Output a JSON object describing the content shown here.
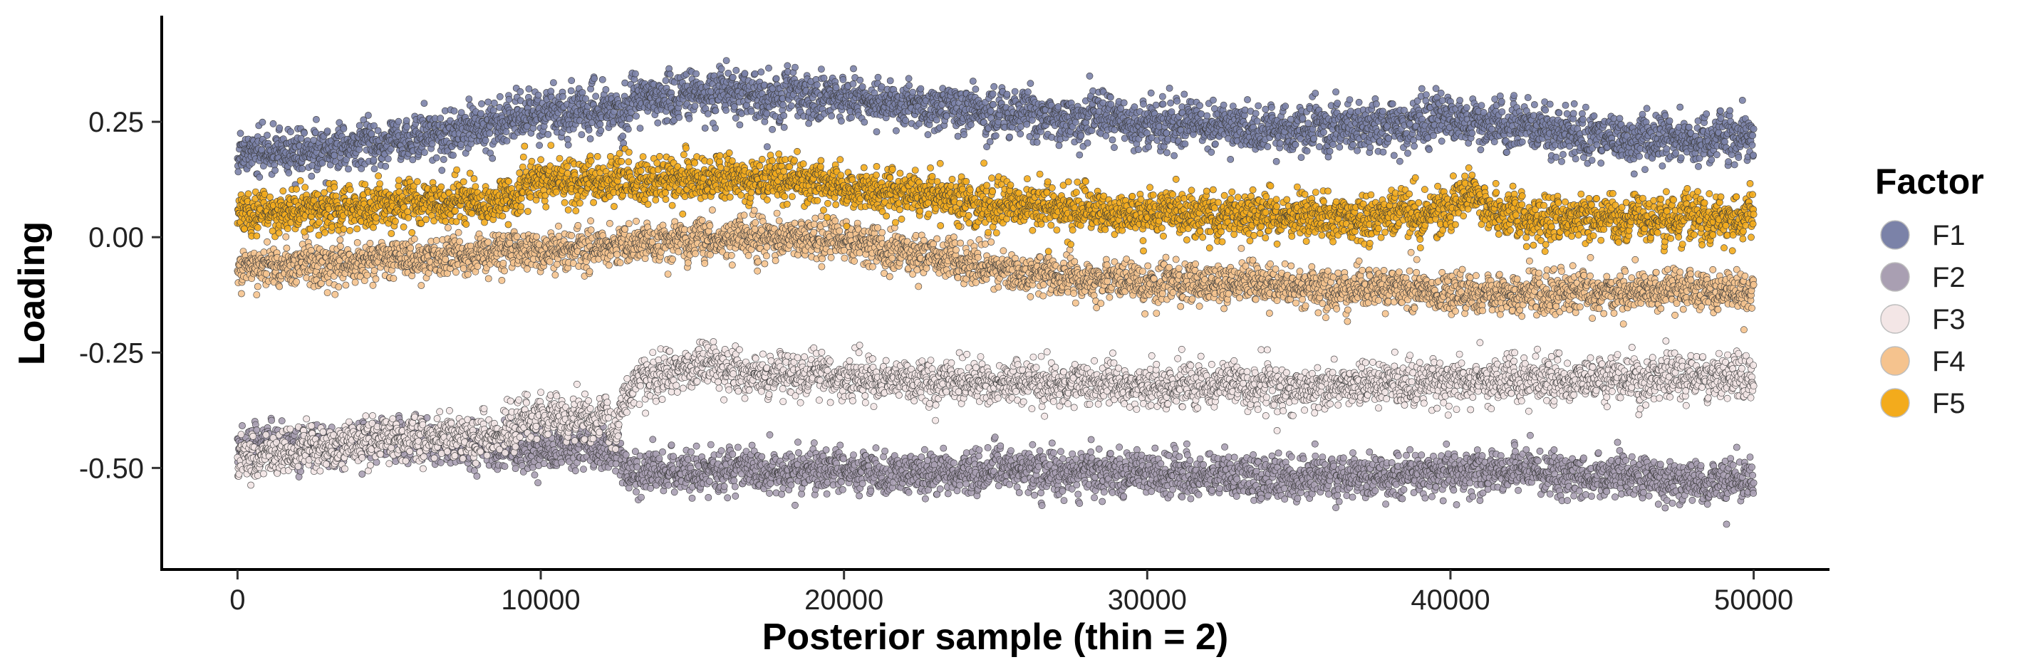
{
  "chart_data": {
    "type": "scatter",
    "xlabel": "Posterior sample (thin = 2)",
    "ylabel": "Loading",
    "xlim": [
      -2500,
      52500
    ],
    "ylim": [
      -0.72,
      0.48
    ],
    "x_ticks": [
      0,
      10000,
      20000,
      30000,
      40000,
      50000
    ],
    "x_tick_labels": [
      "0",
      "10000",
      "20000",
      "30000",
      "40000",
      "50000"
    ],
    "y_ticks": [
      0.25,
      0.0,
      -0.25,
      -0.5
    ],
    "y_tick_labels": [
      "0.25",
      "0.00",
      "-0.25",
      "-0.50"
    ],
    "grid": false,
    "legend": {
      "title": "Factor",
      "position": "right"
    },
    "x_sample_step": 2,
    "series": [
      {
        "name": "F1",
        "color": "#7b82a8",
        "x": [
          0,
          2500,
          5000,
          7500,
          9000,
          10000,
          12500,
          13000,
          15000,
          17500,
          20000,
          22500,
          25000,
          27500,
          30000,
          32500,
          35000,
          37500,
          40000,
          42500,
          45000,
          47500,
          50000
        ],
        "y": [
          0.18,
          0.19,
          0.21,
          0.23,
          0.26,
          0.27,
          0.27,
          0.3,
          0.31,
          0.31,
          0.3,
          0.28,
          0.27,
          0.26,
          0.25,
          0.24,
          0.23,
          0.24,
          0.26,
          0.24,
          0.22,
          0.21,
          0.22
        ],
        "spread": 0.038
      },
      {
        "name": "F2",
        "color": "#a99fb2",
        "x": [
          0,
          2500,
          5000,
          7500,
          10000,
          12500,
          13000,
          15000,
          17500,
          20000,
          22500,
          25000,
          27500,
          30000,
          32500,
          35000,
          37500,
          40000,
          42500,
          45000,
          47500,
          50000
        ],
        "y": [
          -0.46,
          -0.45,
          -0.44,
          -0.45,
          -0.46,
          -0.46,
          -0.51,
          -0.51,
          -0.51,
          -0.51,
          -0.51,
          -0.51,
          -0.51,
          -0.51,
          -0.52,
          -0.52,
          -0.52,
          -0.51,
          -0.51,
          -0.52,
          -0.53,
          -0.53
        ],
        "spread": 0.035
      },
      {
        "name": "F3",
        "color": "#f3e6e6",
        "x": [
          0,
          2500,
          5000,
          7500,
          9000,
          9500,
          12500,
          13000,
          15000,
          17500,
          20000,
          22500,
          25000,
          27500,
          30000,
          32500,
          35000,
          37500,
          40000,
          42500,
          45000,
          47500,
          50000
        ],
        "y": [
          -0.49,
          -0.46,
          -0.44,
          -0.43,
          -0.43,
          -0.39,
          -0.4,
          -0.32,
          -0.28,
          -0.3,
          -0.3,
          -0.31,
          -0.32,
          -0.32,
          -0.32,
          -0.32,
          -0.33,
          -0.32,
          -0.31,
          -0.31,
          -0.31,
          -0.3,
          -0.31
        ],
        "spread": 0.035
      },
      {
        "name": "F4",
        "color": "#f5c38e",
        "x": [
          0,
          2500,
          5000,
          7500,
          10000,
          12500,
          15000,
          17500,
          20000,
          22500,
          25000,
          27500,
          30000,
          32500,
          35000,
          37500,
          40000,
          42500,
          45000,
          47500,
          50000
        ],
        "y": [
          -0.07,
          -0.06,
          -0.05,
          -0.04,
          -0.03,
          -0.02,
          -0.01,
          0.0,
          -0.01,
          -0.04,
          -0.07,
          -0.09,
          -0.1,
          -0.1,
          -0.11,
          -0.11,
          -0.12,
          -0.12,
          -0.12,
          -0.12,
          -0.12
        ],
        "spread": 0.032
      },
      {
        "name": "F5",
        "color": "#f3ab1c",
        "x": [
          0,
          2500,
          5000,
          7500,
          9000,
          9500,
          12500,
          15000,
          17500,
          20000,
          22500,
          25000,
          27500,
          30000,
          32500,
          35000,
          37500,
          40000,
          40500,
          41500,
          42500,
          45000,
          47500,
          50000
        ],
        "y": [
          0.05,
          0.06,
          0.07,
          0.08,
          0.08,
          0.12,
          0.12,
          0.13,
          0.13,
          0.11,
          0.09,
          0.07,
          0.06,
          0.05,
          0.05,
          0.05,
          0.04,
          0.06,
          0.1,
          0.06,
          0.04,
          0.04,
          0.04,
          0.04
        ],
        "spread": 0.036
      }
    ]
  }
}
